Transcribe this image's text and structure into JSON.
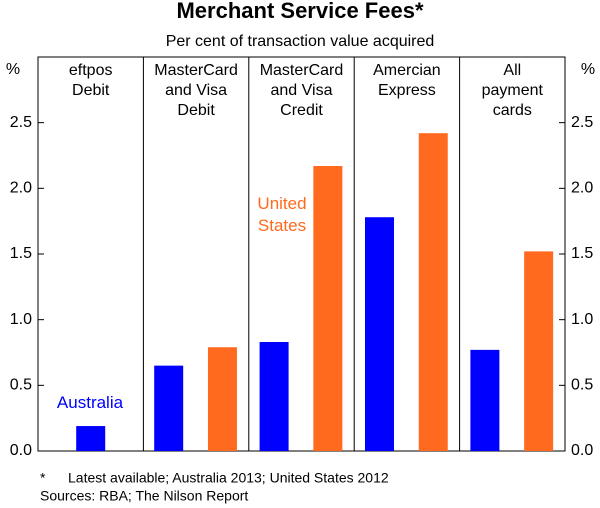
{
  "chart_data": {
    "type": "bar",
    "title": "Merchant Service Fees*",
    "subtitle": "Per cent of transaction value acquired",
    "y_unit": "%",
    "categories": [
      [
        "eftpos",
        "Debit"
      ],
      [
        "MasterCard",
        "and Visa",
        "Debit"
      ],
      [
        "MasterCard",
        "and Visa",
        "Credit"
      ],
      [
        "Amercian",
        "Express"
      ],
      [
        "All",
        "payment",
        "cards"
      ]
    ],
    "series": [
      {
        "name": "Australia",
        "color": "#0000ff",
        "values": [
          0.19,
          0.65,
          0.83,
          1.78,
          0.77
        ]
      },
      {
        "name": "United States",
        "color": "#ff6a1e",
        "values": [
          null,
          0.79,
          2.17,
          2.42,
          1.52
        ]
      }
    ],
    "ylim": [
      0,
      3
    ],
    "yticks": [
      {
        "value": 0,
        "label": "0.0"
      },
      {
        "value": 0.5,
        "label": "0.5"
      },
      {
        "value": 1,
        "label": "1.0"
      },
      {
        "value": 1.5,
        "label": "1.5"
      },
      {
        "value": 2,
        "label": "2.0"
      },
      {
        "value": 2.5,
        "label": "2.5"
      }
    ],
    "footnote_marker": "*",
    "footnote": "Latest available; Australia 2013; United States 2012",
    "sources": "Sources: RBA; The Nilson Report"
  }
}
